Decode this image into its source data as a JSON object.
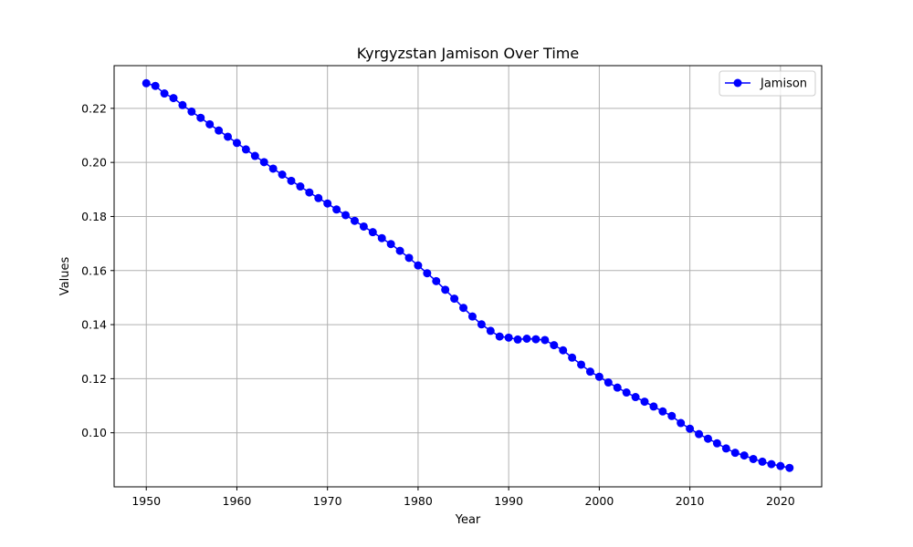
{
  "chart_data": {
    "type": "line",
    "title": "Kyrgyzstan Jamison Over Time",
    "xlabel": "Year",
    "ylabel": "Values",
    "xlim": [
      1946.45,
      2024.55
    ],
    "ylim": [
      0.08,
      0.2358
    ],
    "xticks": [
      1950,
      1960,
      1970,
      1980,
      1990,
      2000,
      2010,
      2020
    ],
    "yticks": [
      0.1,
      0.12,
      0.14,
      0.16,
      0.18,
      0.2,
      0.22
    ],
    "ytick_labels": [
      "0.10",
      "0.12",
      "0.14",
      "0.16",
      "0.18",
      "0.20",
      "0.22"
    ],
    "grid": true,
    "legend_position": "upper right",
    "x": [
      1950,
      1951,
      1952,
      1953,
      1954,
      1955,
      1956,
      1957,
      1958,
      1959,
      1960,
      1961,
      1962,
      1963,
      1964,
      1965,
      1966,
      1967,
      1968,
      1969,
      1970,
      1971,
      1972,
      1973,
      1974,
      1975,
      1976,
      1977,
      1978,
      1979,
      1980,
      1981,
      1982,
      1983,
      1984,
      1985,
      1986,
      1987,
      1988,
      1989,
      1990,
      1991,
      1992,
      1993,
      1994,
      1995,
      1996,
      1997,
      1998,
      1999,
      2000,
      2001,
      2002,
      2003,
      2004,
      2005,
      2006,
      2007,
      2008,
      2009,
      2010,
      2011,
      2012,
      2013,
      2014,
      2015,
      2016,
      2017,
      2018,
      2019,
      2020,
      2021
    ],
    "series": [
      {
        "name": "Jamison",
        "color": "#0000ff",
        "marker": "circle",
        "values": [
          0.2293,
          0.2283,
          0.2255,
          0.2238,
          0.2212,
          0.2188,
          0.2165,
          0.2141,
          0.2118,
          0.2095,
          0.2072,
          0.2048,
          0.2024,
          0.2001,
          0.1977,
          0.1955,
          0.1932,
          0.1911,
          0.1889,
          0.1868,
          0.1848,
          0.1826,
          0.1805,
          0.1784,
          0.1763,
          0.1742,
          0.172,
          0.1698,
          0.1673,
          0.1647,
          0.1619,
          0.159,
          0.1561,
          0.1529,
          0.1496,
          0.1462,
          0.143,
          0.1401,
          0.1377,
          0.1356,
          0.1352,
          0.1345,
          0.1348,
          0.1346,
          0.1343,
          0.1324,
          0.1305,
          0.1278,
          0.1252,
          0.1226,
          0.1207,
          0.1186,
          0.1167,
          0.1149,
          0.1132,
          0.1115,
          0.1097,
          0.1079,
          0.1062,
          0.1036,
          0.1015,
          0.0995,
          0.0978,
          0.0961,
          0.0942,
          0.0926,
          0.0916,
          0.0903,
          0.0893,
          0.0884,
          0.0877,
          0.087
        ]
      }
    ]
  }
}
